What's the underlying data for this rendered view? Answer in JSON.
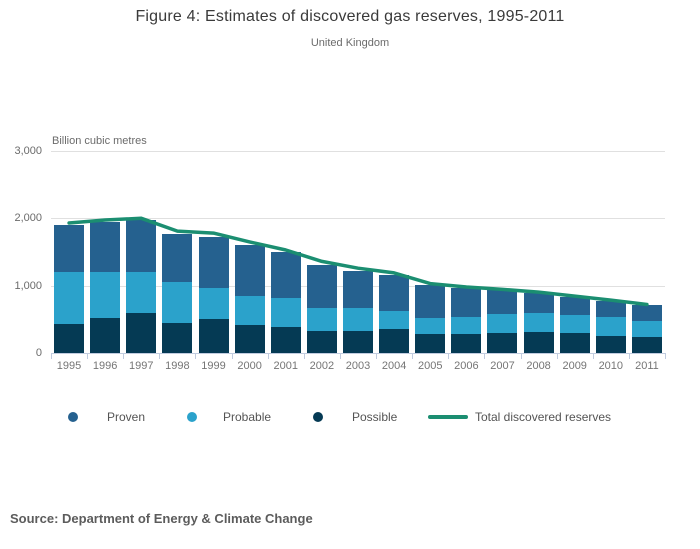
{
  "header": {
    "title": "Figure 4: Estimates of discovered gas reserves, 1995-2011",
    "subtitle": "United Kingdom"
  },
  "source": {
    "label": "Source: Department of Energy & Climate Change"
  },
  "chart_data": {
    "type": "bar",
    "stacked": true,
    "title": "Figure 4: Estimates of discovered gas reserves, 1995-2011",
    "subtitle": "United Kingdom",
    "ylabel": "Billion cubic metres",
    "xlabel": "",
    "ylim": [
      0,
      3000
    ],
    "grid": true,
    "legend_position": "bottom",
    "categories": [
      "1995",
      "1996",
      "1997",
      "1998",
      "1999",
      "2000",
      "2001",
      "2002",
      "2003",
      "2004",
      "2005",
      "2006",
      "2007",
      "2008",
      "2009",
      "2010",
      "2011"
    ],
    "stack_order_bottom_to_top": [
      "Possible",
      "Probable",
      "Proven"
    ],
    "series": [
      {
        "name": "Proven",
        "color": "#25618F",
        "values": [
          700,
          740,
          770,
          720,
          760,
          750,
          680,
          630,
          550,
          530,
          490,
          430,
          350,
          300,
          270,
          230,
          235
        ]
      },
      {
        "name": "Probable",
        "color": "#2BA2CB",
        "values": [
          770,
          680,
          610,
          600,
          470,
          440,
          430,
          350,
          340,
          280,
          240,
          250,
          280,
          280,
          270,
          290,
          240
        ]
      },
      {
        "name": "Possible",
        "color": "#053A54",
        "values": [
          430,
          520,
          590,
          450,
          500,
          410,
          390,
          320,
          330,
          350,
          280,
          280,
          300,
          310,
          290,
          250,
          235
        ]
      }
    ],
    "line_series": {
      "name": "Total discovered reserves",
      "color": "#1B8E71",
      "values": [
        1930,
        1975,
        2000,
        1810,
        1780,
        1650,
        1530,
        1360,
        1260,
        1190,
        1030,
        980,
        945,
        905,
        845,
        785,
        720
      ]
    },
    "y_axis": {
      "tick_values": [
        0,
        1000,
        2000,
        3000
      ],
      "tick_labels": [
        "0",
        "1,000",
        "2,000",
        "3,000"
      ]
    },
    "axis_colors": {
      "gridline": "#e0e0e0",
      "axis_line": "#c1ccdf"
    }
  }
}
